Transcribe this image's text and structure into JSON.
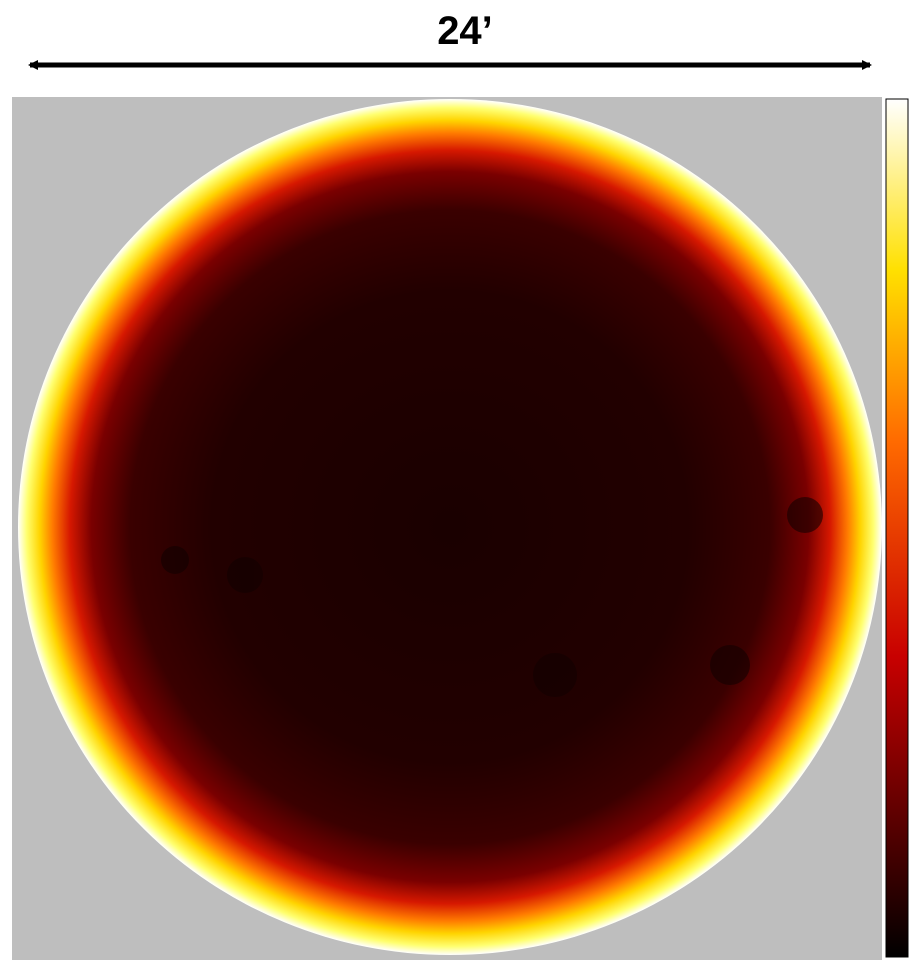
{
  "scale_label": "24’"
}
